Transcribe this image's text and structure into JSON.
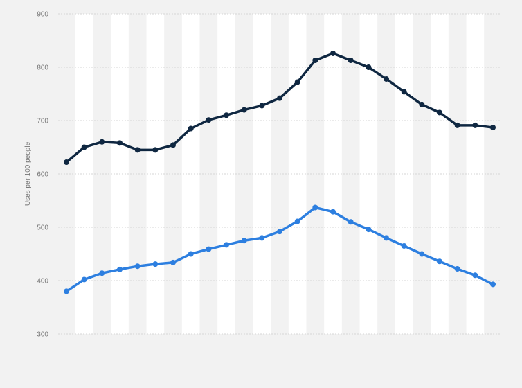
{
  "chart_data": {
    "type": "line",
    "title": "",
    "xlabel": "",
    "ylabel": "Uses per 100 people",
    "ylim": [
      300,
      900
    ],
    "yticks": [
      300,
      400,
      500,
      600,
      700,
      800,
      900
    ],
    "grid": true,
    "series": [
      {
        "color": "#0f2741",
        "values": [
          622,
          650,
          660,
          658,
          645,
          645,
          654,
          685,
          701,
          710,
          720,
          728,
          742,
          772,
          813,
          826,
          813,
          800,
          778,
          754,
          730,
          715,
          691,
          691,
          687
        ]
      },
      {
        "color": "#2d7fe0",
        "values": [
          380,
          402,
          414,
          421,
          427,
          431,
          434,
          450,
          459,
          467,
          475,
          480,
          492,
          511,
          537,
          529,
          510,
          496,
          480,
          465,
          450,
          436,
          422,
          410,
          393
        ]
      }
    ]
  }
}
